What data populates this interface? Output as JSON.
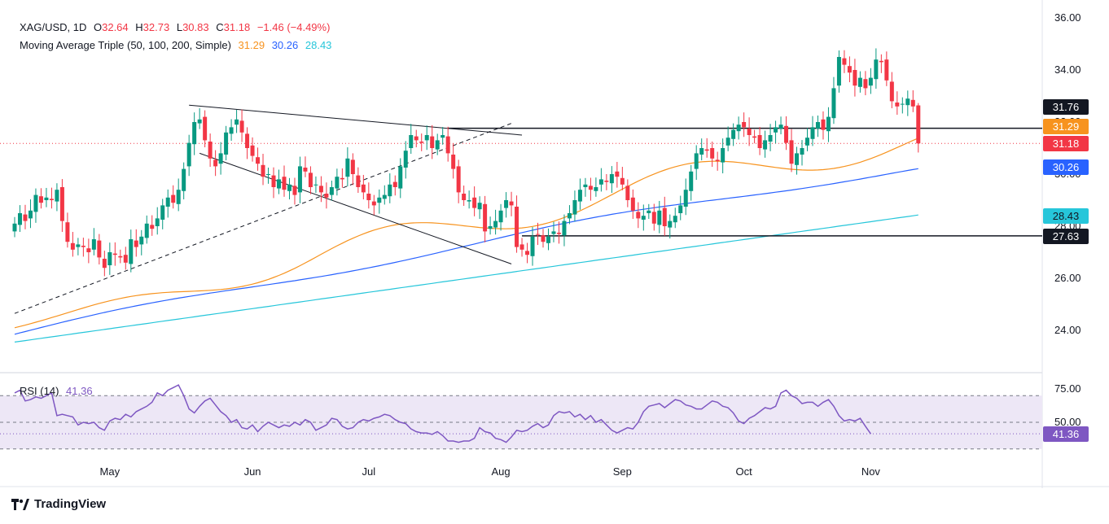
{
  "header": {
    "symbol": "XAG/USD, 1D",
    "open_label": "O",
    "open": "32.64",
    "high_label": "H",
    "high": "32.73",
    "low_label": "L",
    "low": "30.83",
    "close_label": "C",
    "close": "31.18",
    "change": "−1.46 (−4.49%)",
    "ma_title": "Moving Average Triple (50, 100, 200, Simple)",
    "ma50": "31.29",
    "ma100": "30.26",
    "ma200": "28.43"
  },
  "rsi_header": {
    "title": "RSI (14)",
    "value": "41.36"
  },
  "price_labels": [
    {
      "text": "31.76",
      "bg": "#131722",
      "fg": "#ffffff"
    },
    {
      "text": "31.29",
      "bg": "#f7931e",
      "fg": "#ffffff"
    },
    {
      "text": "31.18",
      "bg": "#f23645",
      "fg": "#ffffff"
    },
    {
      "text": "30.26",
      "bg": "#2962ff",
      "fg": "#ffffff"
    },
    {
      "text": "28.43",
      "bg": "#26c6da",
      "fg": "#131722"
    },
    {
      "text": "27.63",
      "bg": "#131722",
      "fg": "#ffffff"
    }
  ],
  "rsi_labels": [
    {
      "text": "41.36",
      "bg": "#7e57c2",
      "fg": "#ffffff"
    }
  ],
  "branding": {
    "name": "TradingView"
  },
  "colors": {
    "up": "#089981",
    "down": "#f23645",
    "ma50": "#f7931e",
    "ma100": "#2962ff",
    "ma200": "#26c6da",
    "rsi": "#7e57c2",
    "rsi_band": "#ede7f6"
  },
  "chart_data": {
    "type": "candlestick",
    "instrument": "XAG/USD",
    "interval": "1D",
    "price_axis": {
      "ticks": [
        "24.00",
        "26.00",
        "28.00",
        "30.00",
        "32.00",
        "34.00",
        "36.00"
      ],
      "range": [
        23.0,
        36.3
      ]
    },
    "time_axis": {
      "labels": [
        "May",
        "Jun",
        "Jul",
        "Aug",
        "Sep",
        "Oct",
        "Nov"
      ],
      "label_bar_index": [
        18,
        45,
        67,
        92,
        115,
        138,
        162
      ]
    },
    "horizontal_levels": [
      31.76,
      27.63
    ],
    "trendlines": [
      {
        "style": "solid",
        "from": [
          33,
          32.65
        ],
        "to": [
          96,
          31.5
        ]
      },
      {
        "style": "solid",
        "from": [
          35,
          30.8
        ],
        "to": [
          94,
          26.55
        ]
      },
      {
        "style": "dashed",
        "from": [
          0,
          24.65
        ],
        "to": [
          94,
          31.95
        ]
      }
    ],
    "ohlc_sample_closes": [
      28.1,
      28.5,
      28.2,
      28.6,
      29.2,
      28.9,
      29.1,
      29.0,
      29.4,
      28.2,
      27.4,
      27.1,
      27.3,
      27.2,
      27.0,
      27.5,
      26.8,
      26.4,
      27.0,
      26.9,
      26.8,
      26.6,
      27.5,
      27.2,
      27.6,
      28.1,
      27.9,
      28.3,
      28.8,
      29.1,
      28.9,
      29.4,
      30.2,
      31.2,
      32.0,
      32.1,
      31.3,
      30.6,
      30.3,
      30.8,
      31.6,
      31.8,
      32.1,
      31.6,
      31.0,
      30.7,
      30.4,
      29.9,
      30.0,
      29.5,
      29.8,
      29.4,
      29.6,
      29.2,
      30.3,
      30.1,
      29.5,
      29.6,
      29.3,
      29.1,
      29.5,
      29.9,
      29.8,
      30.6,
      30.0,
      29.5,
      29.3,
      29.0,
      28.8,
      29.1,
      29.2,
      29.6,
      29.5,
      30.3,
      30.9,
      31.5,
      31.3,
      31.2,
      31.5,
      31.0,
      31.3,
      31.5,
      30.8,
      30.2,
      29.3,
      29.0,
      29.0,
      28.7,
      28.9,
      27.8,
      28.0,
      28.2,
      28.6,
      29.0,
      28.8,
      27.2,
      27.1,
      26.9,
      27.6,
      27.7,
      27.4,
      27.6,
      27.8,
      27.7,
      28.2,
      28.5,
      29.0,
      29.4,
      29.6,
      29.4,
      29.5,
      29.8,
      29.7,
      30.0,
      29.9,
      29.6,
      29.0,
      28.6,
      28.3,
      28.4,
      28.6,
      28.1,
      28.6,
      28.0,
      28.2,
      28.4,
      28.8,
      29.4,
      30.1,
      30.8,
      31.0,
      30.9,
      30.6,
      30.5,
      31.0,
      31.4,
      31.7,
      31.9,
      31.8,
      31.5,
      31.4,
      31.0,
      31.3,
      31.5,
      31.8,
      31.9,
      31.2,
      30.4,
      30.8,
      31.0,
      31.4,
      31.8,
      32.0,
      31.7,
      32.2,
      33.3,
      34.5,
      34.2,
      33.9,
      33.4,
      33.7,
      33.3,
      33.7,
      34.4,
      34.3,
      33.6,
      32.8,
      32.6,
      32.7,
      32.9,
      32.6,
      31.18
    ],
    "series": [
      {
        "name": "MA 50",
        "last": 31.29
      },
      {
        "name": "MA 100",
        "last": 30.26
      },
      {
        "name": "MA 200",
        "last": 28.43
      }
    ],
    "rsi": {
      "period": 14,
      "last": 41.36,
      "levels": [
        70,
        50,
        30
      ],
      "ticks": [
        "75.00",
        "50.00"
      ],
      "values": [
        72,
        74,
        66,
        67,
        69,
        68,
        70,
        72,
        55,
        56,
        55,
        54,
        48,
        50,
        49,
        50,
        46,
        44,
        51,
        53,
        52,
        56,
        54,
        58,
        60,
        62,
        65,
        72,
        70,
        74,
        76,
        78,
        70,
        60,
        57,
        62,
        66,
        68,
        63,
        58,
        55,
        50,
        52,
        46,
        45,
        48,
        43,
        47,
        50,
        48,
        46,
        48,
        47,
        50,
        48,
        52,
        50,
        44,
        46,
        48,
        53,
        52,
        47,
        45,
        46,
        50,
        52,
        51,
        53,
        54,
        56,
        55,
        52,
        50,
        49,
        45,
        43,
        42,
        42,
        41,
        43,
        40,
        36,
        36,
        35,
        36,
        36,
        38,
        46,
        43,
        42,
        38,
        37,
        35,
        39,
        44,
        43,
        44,
        47,
        49,
        46,
        48,
        55,
        58,
        57,
        58,
        54,
        56,
        52,
        55,
        50,
        52,
        48,
        44,
        42,
        44,
        46,
        45,
        50,
        58,
        62,
        63,
        64,
        61,
        64,
        67,
        66,
        63,
        62,
        60,
        60,
        63,
        66,
        65,
        62,
        61,
        57,
        51,
        49,
        53,
        55,
        58,
        61,
        60,
        62,
        72,
        74,
        70,
        68,
        64,
        65,
        65,
        62,
        65,
        67,
        62,
        55,
        51,
        52,
        51,
        53,
        47,
        41.36
      ]
    }
  }
}
